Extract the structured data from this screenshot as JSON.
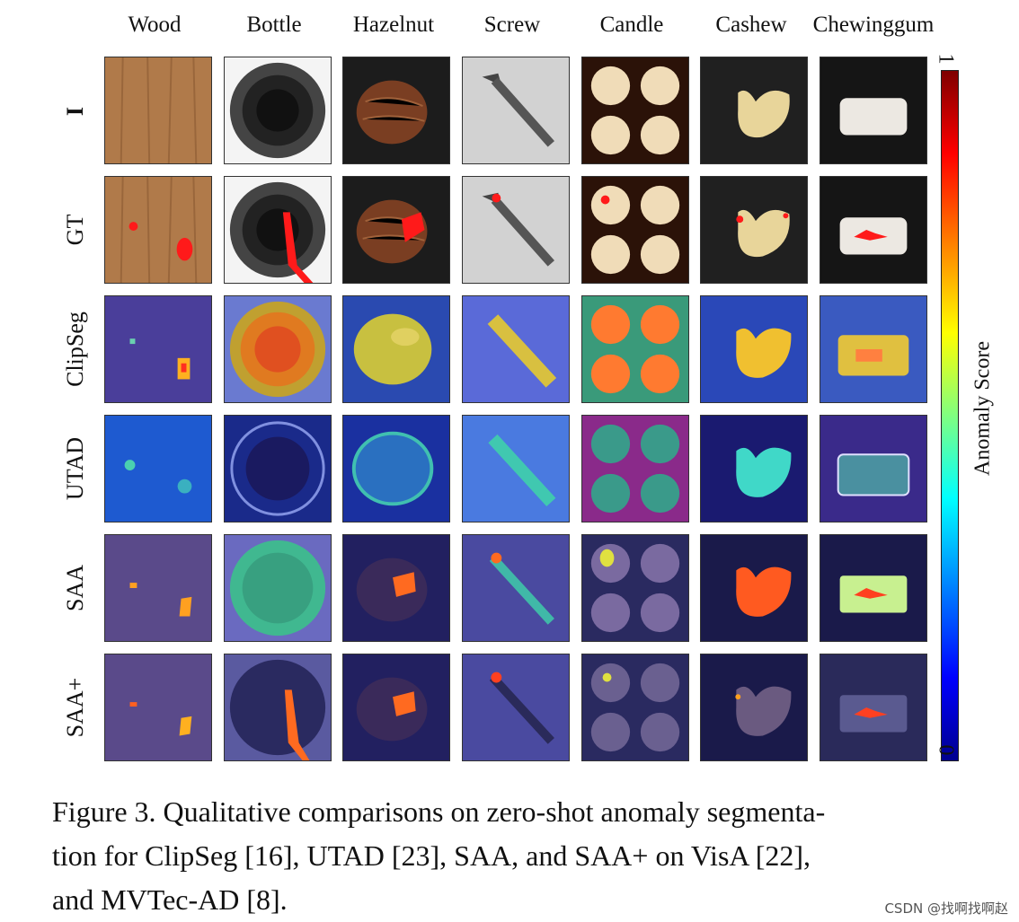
{
  "columns": [
    "Wood",
    "Bottle",
    "Hazelnut",
    "Screw",
    "Candle",
    "Cashew",
    "Chewinggum"
  ],
  "rows": [
    "I",
    "GT",
    "ClipSeg",
    "UTAD",
    "SAA",
    "SAA+"
  ],
  "colorbar": {
    "label": "Anomaly Score",
    "max_label": "1",
    "min_label": "0"
  },
  "caption": "Figure 3. Qualitative comparisons on zero-shot anomaly segmentation for ClipSeg [16], UTAD [23], SAA, and SAA+ on VisA [22], and MVTec-AD [8].",
  "caption_lines": [
    "Figure 3. Qualitative comparisons on zero-shot anomaly segmenta-",
    "tion for ClipSeg [16], UTAD [23], SAA, and SAA+ on VisA [22],",
    "and MVTec-AD [8]."
  ],
  "watermark": "CSDN @找啊找啊赵",
  "colors": {
    "anomaly_red": "#ff1a1a",
    "overlay_blue": "#3a3aa8",
    "colorbar_top": "#7f0000",
    "colorbar_bottom": "#00008f"
  }
}
